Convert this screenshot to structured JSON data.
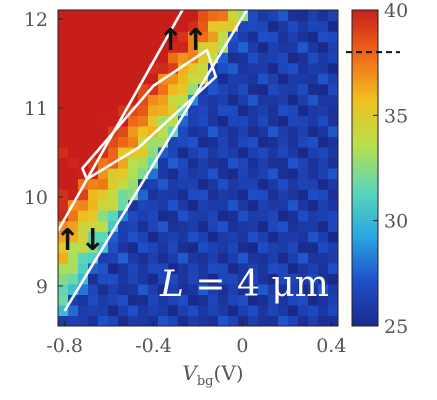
{
  "chart_data": {
    "type": "heatmap",
    "title": "",
    "xlabel_main": "V",
    "xlabel_sub": "bg",
    "xlabel_unit": "(V)",
    "ylabel": "",
    "xlim": [
      -0.83,
      0.43
    ],
    "ylim": [
      8.55,
      12.1
    ],
    "x_ticks": [
      {
        "value": -0.8,
        "label": "-0.8"
      },
      {
        "value": -0.4,
        "label": "-0.4"
      },
      {
        "value": 0,
        "label": "0"
      },
      {
        "value": 0.4,
        "label": "0.4"
      }
    ],
    "y_ticks": [
      {
        "value": 9,
        "label": "9"
      },
      {
        "value": 10,
        "label": "10"
      },
      {
        "value": 11,
        "label": "11"
      },
      {
        "value": 12,
        "label": "12"
      }
    ],
    "colorbar": {
      "min": 25,
      "max": 40,
      "ticks": [
        {
          "value": 25,
          "label": "25"
        },
        {
          "value": 30,
          "label": "30"
        },
        {
          "value": 35,
          "label": "35"
        },
        {
          "value": 40,
          "label": "40"
        }
      ],
      "marker_value": 38,
      "colors": [
        "#1a2a8c",
        "#1f4fc9",
        "#2aa8e0",
        "#5cd6b8",
        "#b8e04a",
        "#f0c020",
        "#f06a18",
        "#c81e1a"
      ]
    },
    "boundary_lines": [
      {
        "name": "upper",
        "points": [
          [
            -0.83,
            9.62
          ],
          [
            -0.27,
            12.1
          ]
        ]
      },
      {
        "name": "lower",
        "points": [
          [
            -0.8,
            8.72
          ],
          [
            0.02,
            12.1
          ]
        ]
      }
    ],
    "loop_contour": [
      [
        -0.7,
        10.2
      ],
      [
        -0.47,
        10.55
      ],
      [
        -0.12,
        11.35
      ],
      [
        -0.16,
        11.65
      ],
      [
        -0.4,
        11.25
      ],
      [
        -0.72,
        10.32
      ]
    ],
    "annotations": {
      "length_label_symbol": "L",
      "length_label_rest": " = 4 μm",
      "parallel_spins": "↑↑",
      "antiparallel_spins": "↑↓"
    },
    "notes": "Color value rises from ~25 (dark blue, lower-right region) to ~40 (red, upper-left region) across a diagonal band."
  }
}
